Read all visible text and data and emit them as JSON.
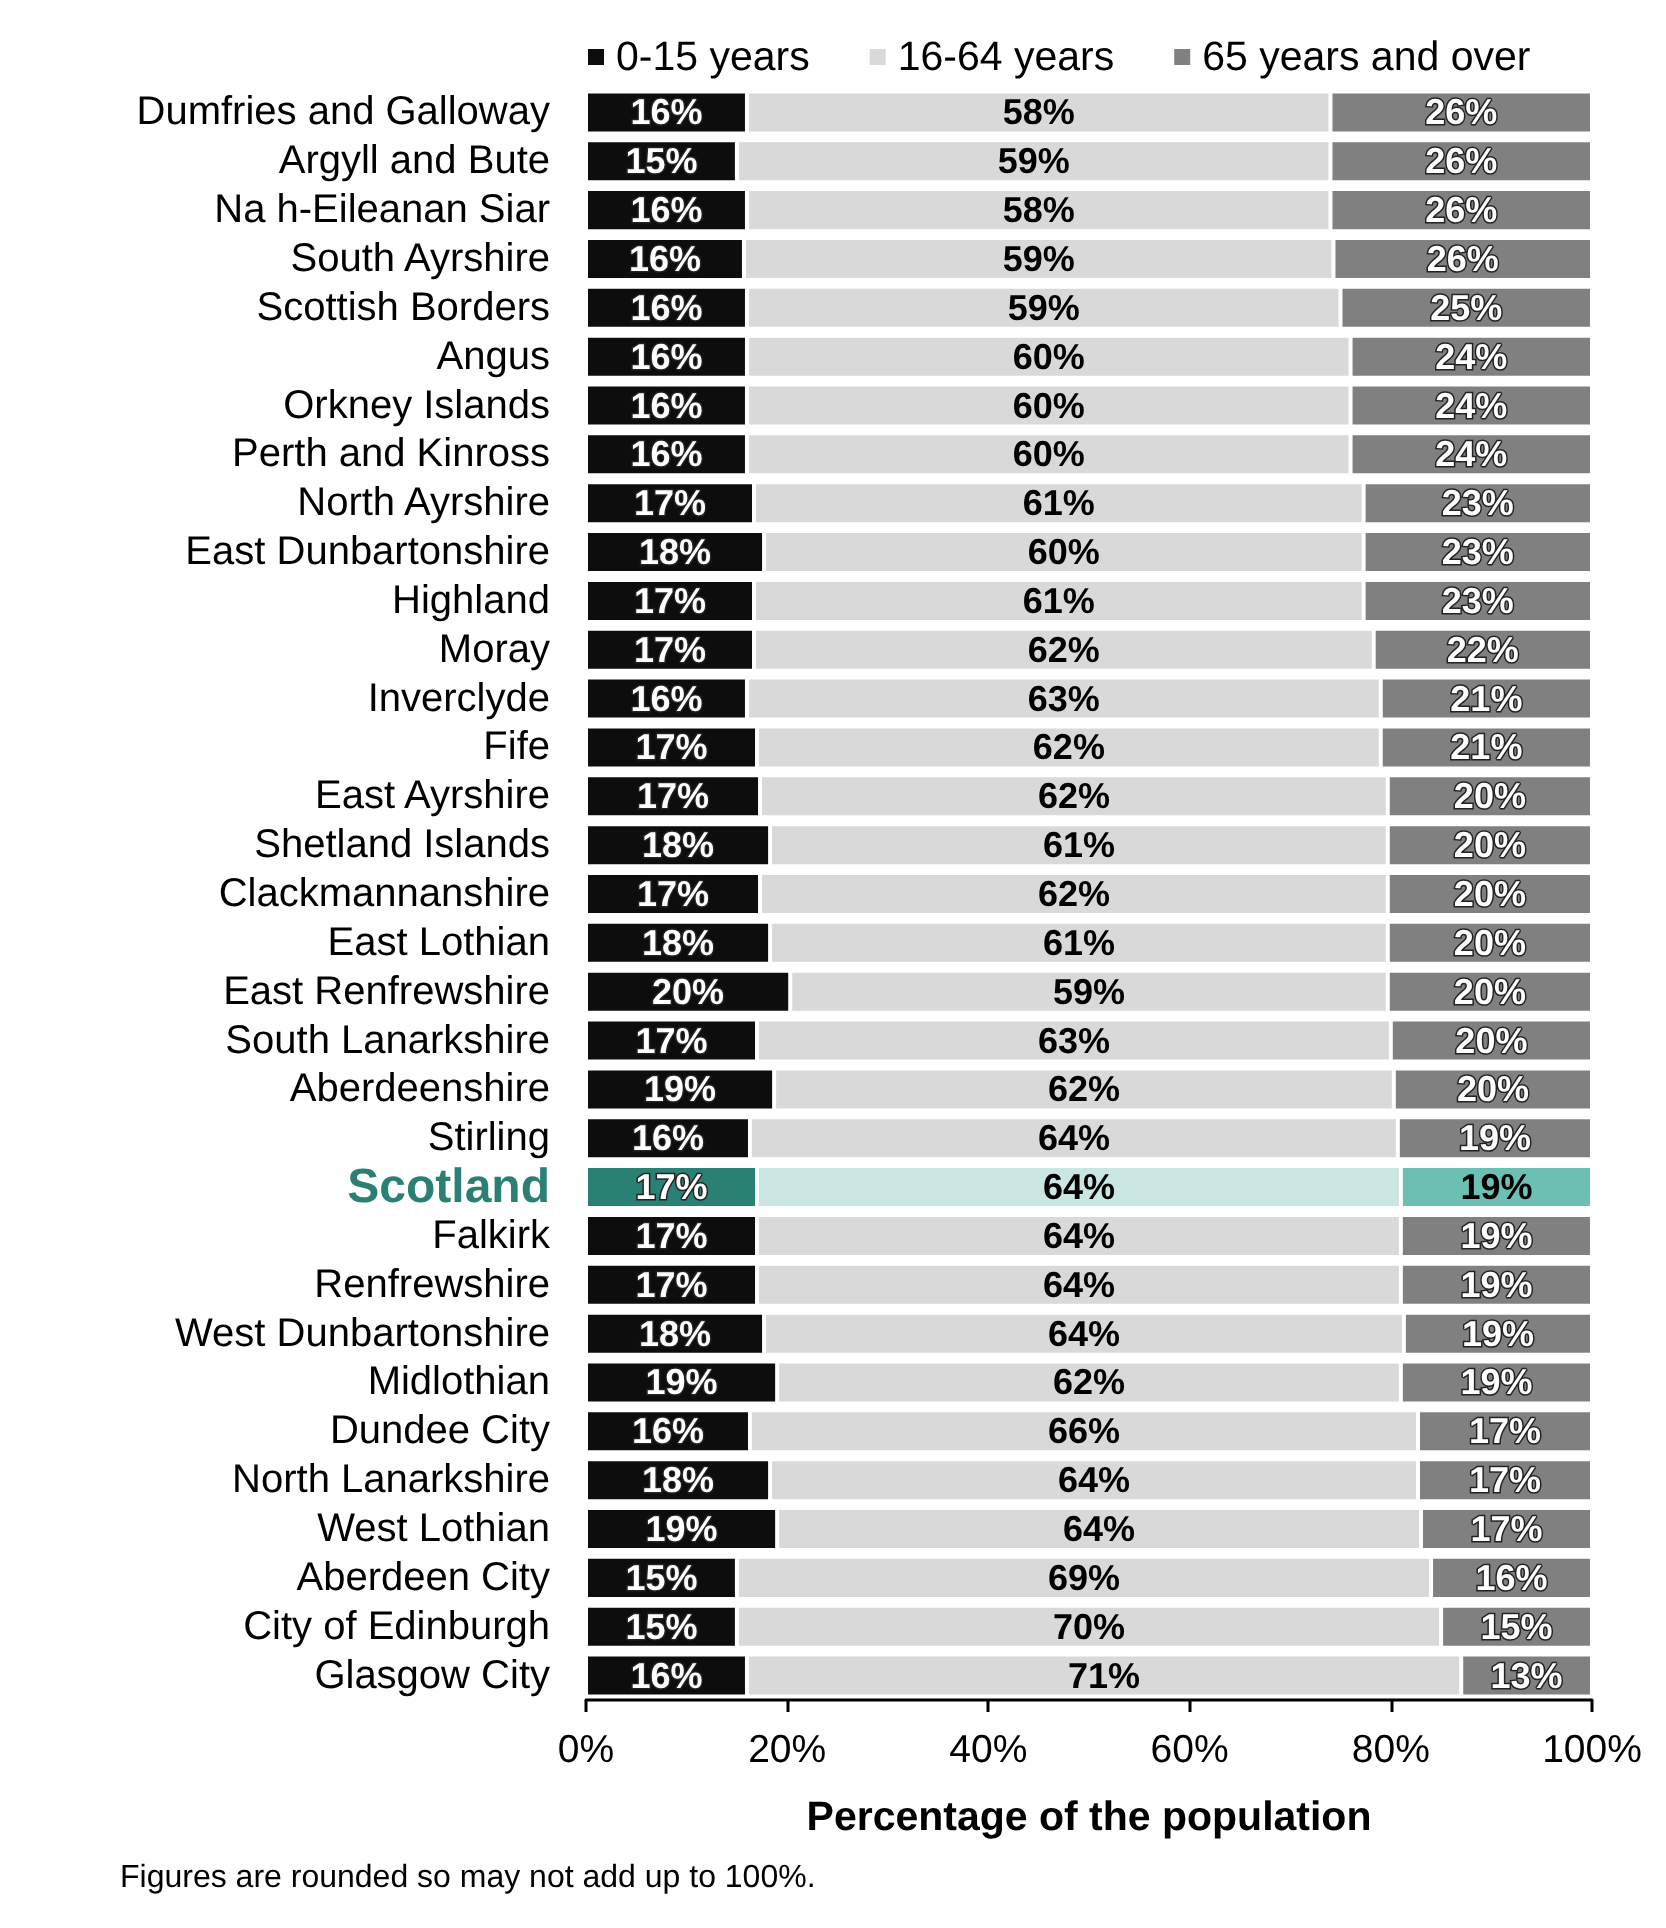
{
  "chart_data": {
    "type": "bar",
    "orientation": "horizontal",
    "stacked": true,
    "xlabel": "Percentage of the population",
    "annotations": [
      "Figures are rounded so may not add up to 100%."
    ],
    "categories": [
      "Dumfries and Galloway",
      "Argyll and Bute",
      "Na h-Eileanan Siar",
      "South Ayrshire",
      "Scottish Borders",
      "Angus",
      "Orkney Islands",
      "Perth and Kinross",
      "North Ayrshire",
      "East Dunbartonshire",
      "Highland",
      "Moray",
      "Inverclyde",
      "Fife",
      "East Ayrshire",
      "Shetland Islands",
      "Clackmannanshire",
      "East Lothian",
      "East Renfrewshire",
      "South Lanarkshire",
      "Aberdeenshire",
      "Stirling",
      "Scotland",
      "Falkirk",
      "Renfrewshire",
      "West Dunbartonshire",
      "Midlothian",
      "Dundee City",
      "North Lanarkshire",
      "West Lothian",
      "Aberdeen City",
      "City of Edinburgh",
      "Glasgow City"
    ],
    "series": [
      {
        "name": "0-15 years",
        "color": "#0d0d0d",
        "values": [
          16,
          15,
          16,
          15.7,
          16,
          16,
          16,
          16,
          16.7,
          17.7,
          16.7,
          16.7,
          16,
          17,
          17.3,
          18.3,
          17.3,
          18.3,
          20.3,
          17,
          18.7,
          16.3,
          17,
          17,
          17,
          17.7,
          19,
          16.3,
          18.3,
          19,
          15,
          15,
          16
        ],
        "colors": [
          "#0d0d0d",
          "#0d0d0d",
          "#0d0d0d",
          "#0d0d0d",
          "#0d0d0d",
          "#0d0d0d",
          "#0d0d0d",
          "#0d0d0d",
          "#0d0d0d",
          "#0d0d0d",
          "#0d0d0d",
          "#0d0d0d",
          "#0d0d0d",
          "#0d0d0d",
          "#0d0d0d",
          "#0d0d0d",
          "#0d0d0d",
          "#0d0d0d",
          "#0d0d0d",
          "#0d0d0d",
          "#0d0d0d",
          "#0d0d0d",
          "#2b8074",
          "#0d0d0d",
          "#0d0d0d",
          "#0d0d0d",
          "#0d0d0d",
          "#0d0d0d",
          "#0d0d0d",
          "#0d0d0d",
          "#0d0d0d",
          "#0d0d0d",
          "#0d0d0d"
        ],
        "value_labels": [
          "16%",
          "15%",
          "16%",
          "16%",
          "16%",
          "16%",
          "16%",
          "16%",
          "17%",
          "18%",
          "17%",
          "17%",
          "16%",
          "17%",
          "17%",
          "18%",
          "17%",
          "18%",
          "20%",
          "17%",
          "19%",
          "16%",
          "17%",
          "17%",
          "17%",
          "18%",
          "19%",
          "16%",
          "18%",
          "19%",
          "15%",
          "15%",
          "16%"
        ]
      },
      {
        "name": "16-64 years",
        "color": "#d9d9d9",
        "values": [
          58,
          59,
          58,
          58.6,
          59,
          60,
          60,
          60,
          60.6,
          59.6,
          60.6,
          61.6,
          63,
          62,
          62.4,
          61.4,
          62.4,
          61.4,
          59.4,
          63,
          61.6,
          64.4,
          64,
          64,
          64,
          63.6,
          62,
          66.4,
          64.4,
          64,
          69,
          70,
          71
        ],
        "colors": [
          "#d9d9d9",
          "#d9d9d9",
          "#d9d9d9",
          "#d9d9d9",
          "#d9d9d9",
          "#d9d9d9",
          "#d9d9d9",
          "#d9d9d9",
          "#d9d9d9",
          "#d9d9d9",
          "#d9d9d9",
          "#d9d9d9",
          "#d9d9d9",
          "#d9d9d9",
          "#d9d9d9",
          "#d9d9d9",
          "#d9d9d9",
          "#d9d9d9",
          "#d9d9d9",
          "#d9d9d9",
          "#d9d9d9",
          "#d9d9d9",
          "#c9e6e3",
          "#d9d9d9",
          "#d9d9d9",
          "#d9d9d9",
          "#d9d9d9",
          "#d9d9d9",
          "#d9d9d9",
          "#d9d9d9",
          "#d9d9d9",
          "#d9d9d9",
          "#d9d9d9"
        ],
        "value_labels": [
          "58%",
          "59%",
          "58%",
          "59%",
          "59%",
          "60%",
          "60%",
          "60%",
          "61%",
          "60%",
          "61%",
          "62%",
          "63%",
          "62%",
          "62%",
          "61%",
          "62%",
          "61%",
          "59%",
          "63%",
          "62%",
          "64%",
          "64%",
          "64%",
          "64%",
          "64%",
          "62%",
          "66%",
          "64%",
          "64%",
          "69%",
          "70%",
          "71%"
        ]
      },
      {
        "name": "65 years and over",
        "color": "#808080",
        "values": [
          26,
          26,
          26,
          25.7,
          25,
          24,
          24,
          24,
          22.7,
          22.7,
          22.7,
          21.7,
          21,
          21,
          20.3,
          20.3,
          20.3,
          20.3,
          20.3,
          20,
          19.7,
          19.3,
          19,
          19,
          19,
          18.7,
          19,
          17.3,
          17.3,
          17,
          16,
          15,
          13
        ],
        "colors": [
          "#808080",
          "#808080",
          "#808080",
          "#808080",
          "#808080",
          "#808080",
          "#808080",
          "#808080",
          "#808080",
          "#808080",
          "#808080",
          "#808080",
          "#808080",
          "#808080",
          "#808080",
          "#808080",
          "#808080",
          "#808080",
          "#808080",
          "#808080",
          "#808080",
          "#808080",
          "#6cbfb3",
          "#808080",
          "#808080",
          "#808080",
          "#808080",
          "#808080",
          "#808080",
          "#808080",
          "#808080",
          "#808080",
          "#808080"
        ],
        "value_labels": [
          "26%",
          "26%",
          "26%",
          "26%",
          "25%",
          "24%",
          "24%",
          "24%",
          "23%",
          "23%",
          "23%",
          "22%",
          "21%",
          "21%",
          "20%",
          "20%",
          "20%",
          "20%",
          "20%",
          "20%",
          "20%",
          "19%",
          "19%",
          "19%",
          "19%",
          "19%",
          "19%",
          "17%",
          "17%",
          "17%",
          "16%",
          "15%",
          "13%"
        ]
      }
    ],
    "xlim": [
      0,
      100
    ],
    "xticks": [
      {
        "value": 0,
        "label": "0%"
      },
      {
        "value": 20,
        "label": "20%"
      },
      {
        "value": 40,
        "label": "40%"
      },
      {
        "value": 60,
        "label": "60%"
      },
      {
        "value": 80,
        "label": "80%"
      },
      {
        "value": 100,
        "label": "100%"
      }
    ],
    "grid": false,
    "legend": "top"
  }
}
